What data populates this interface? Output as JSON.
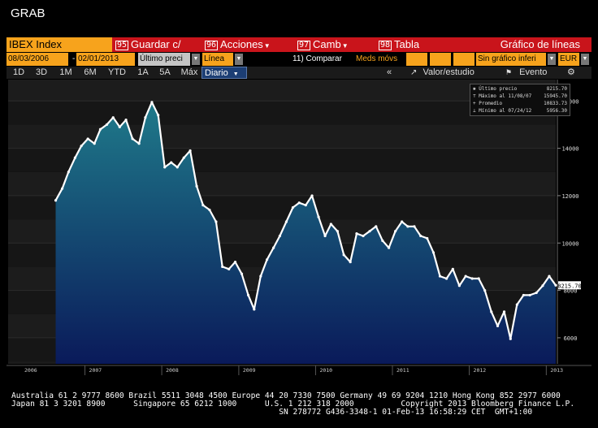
{
  "window": {
    "title": "GRAB"
  },
  "toolbar": {
    "ticker": "IBEX Index",
    "buttons": [
      {
        "num": "95",
        "label": "Guardar c/",
        "caret": false
      },
      {
        "num": "96",
        "label": "Acciones",
        "caret": true
      },
      {
        "num": "97",
        "label": "Camb",
        "caret": true
      },
      {
        "num": "98",
        "label": "Tabla",
        "caret": false
      }
    ],
    "chart_title": "Gráfico de líneas"
  },
  "params": {
    "start_date": "08/03/2006",
    "separator": "-",
    "end_date": "02/01/2013",
    "price_field": "Último preci",
    "chart_type": "Línea",
    "compare_label": "11) Comparar",
    "moves_label": "Meds móvs",
    "no_chart_label": "Sin gráfico inferi",
    "currency": "EUR"
  },
  "periods": {
    "items": [
      "1D",
      "3D",
      "1M",
      "6M",
      "YTD",
      "1A",
      "5A",
      "Máx"
    ],
    "active": "Diario",
    "collapse": "«",
    "study_label": "Valor/estudio",
    "event_label": "Evento",
    "settings_icon": "gear-icon"
  },
  "legend": {
    "rows": [
      {
        "label": "Último precio",
        "value": "8215.70"
      },
      {
        "label": "Máximo al 11/08/07",
        "value": "15945.70"
      },
      {
        "label": "Promedio",
        "value": "10833.73"
      },
      {
        "label": "Mínimo al 07/24/12",
        "value": "5956.30"
      }
    ]
  },
  "chart_data": {
    "type": "area",
    "series": [
      {
        "points": [
          [
            "2006-08",
            11800
          ],
          [
            "2006-09",
            12300
          ],
          [
            "2006-10",
            13000
          ],
          [
            "2006-11",
            13600
          ],
          [
            "2006-12",
            14100
          ],
          [
            "2007-01",
            14400
          ],
          [
            "2007-02",
            14200
          ],
          [
            "2007-03",
            14800
          ],
          [
            "2007-04",
            15000
          ],
          [
            "2007-05",
            15300
          ],
          [
            "2007-06",
            14900
          ],
          [
            "2007-07",
            15200
          ],
          [
            "2007-08",
            14400
          ],
          [
            "2007-09",
            14200
          ],
          [
            "2007-10",
            15300
          ],
          [
            "2007-11",
            15945
          ],
          [
            "2007-12",
            15400
          ],
          [
            "2008-01",
            13200
          ],
          [
            "2008-02",
            13400
          ],
          [
            "2008-03",
            13200
          ],
          [
            "2008-04",
            13600
          ],
          [
            "2008-05",
            13900
          ],
          [
            "2008-06",
            12400
          ],
          [
            "2008-07",
            11600
          ],
          [
            "2008-08",
            11400
          ],
          [
            "2008-09",
            10900
          ],
          [
            "2008-10",
            9000
          ],
          [
            "2008-11",
            8900
          ],
          [
            "2008-12",
            9200
          ],
          [
            "2009-01",
            8700
          ],
          [
            "2009-02",
            7800
          ],
          [
            "2009-03",
            7200
          ],
          [
            "2009-04",
            8600
          ],
          [
            "2009-05",
            9300
          ],
          [
            "2009-06",
            9800
          ],
          [
            "2009-07",
            10300
          ],
          [
            "2009-08",
            10900
          ],
          [
            "2009-09",
            11500
          ],
          [
            "2009-10",
            11700
          ],
          [
            "2009-11",
            11600
          ],
          [
            "2009-12",
            12000
          ],
          [
            "2010-01",
            11100
          ],
          [
            "2010-02",
            10300
          ],
          [
            "2010-03",
            10800
          ],
          [
            "2010-04",
            10500
          ],
          [
            "2010-05",
            9500
          ],
          [
            "2010-06",
            9200
          ],
          [
            "2010-07",
            10400
          ],
          [
            "2010-08",
            10300
          ],
          [
            "2010-09",
            10500
          ],
          [
            "2010-10",
            10700
          ],
          [
            "2010-11",
            10100
          ],
          [
            "2010-12",
            9800
          ],
          [
            "2011-01",
            10500
          ],
          [
            "2011-02",
            10900
          ],
          [
            "2011-03",
            10700
          ],
          [
            "2011-04",
            10700
          ],
          [
            "2011-05",
            10300
          ],
          [
            "2011-06",
            10200
          ],
          [
            "2011-07",
            9600
          ],
          [
            "2011-08",
            8600
          ],
          [
            "2011-09",
            8500
          ],
          [
            "2011-10",
            8900
          ],
          [
            "2011-11",
            8200
          ],
          [
            "2011-12",
            8600
          ],
          [
            "2012-01",
            8500
          ],
          [
            "2012-02",
            8500
          ],
          [
            "2012-03",
            8000
          ],
          [
            "2012-04",
            7100
          ],
          [
            "2012-05",
            6500
          ],
          [
            "2012-06",
            7100
          ],
          [
            "2012-07",
            5956
          ],
          [
            "2012-08",
            7400
          ],
          [
            "2012-09",
            7800
          ],
          [
            "2012-10",
            7800
          ],
          [
            "2012-11",
            7900
          ],
          [
            "2012-12",
            8200
          ],
          [
            "2013-01",
            8600
          ],
          [
            "2013-02",
            8215.7
          ]
        ]
      }
    ],
    "x_ticks": [
      "2006",
      "2007",
      "2008",
      "2009",
      "2010",
      "2011",
      "2012",
      "2013"
    ],
    "y_ticks": [
      6000,
      8000,
      10000,
      12000,
      14000,
      16000
    ],
    "ylim": [
      4900,
      16900
    ],
    "last_value_label": "8215.70",
    "grid": true
  },
  "footer": {
    "line1": "Australia 61 2 9777 8600 Brazil 5511 3048 4500 Europe 44 20 7330 7500 Germany 49 69 9204 1210 Hong Kong 852 2977 6000",
    "line2": "Japan 81 3 3201 8900      Singapore 65 6212 1000      U.S. 1 212 318 2000          Copyright 2013 Bloomberg Finance L.P.",
    "line3": "                                                         SN 278772 G436-3348-1 01-Feb-13 16:58:29 CET  GMT+1:00"
  },
  "colors": {
    "accent_orange": "#f7a31c",
    "bar_red": "#c9141b",
    "area_top": "#1f7a8a",
    "area_bottom": "#0a1a5a"
  }
}
